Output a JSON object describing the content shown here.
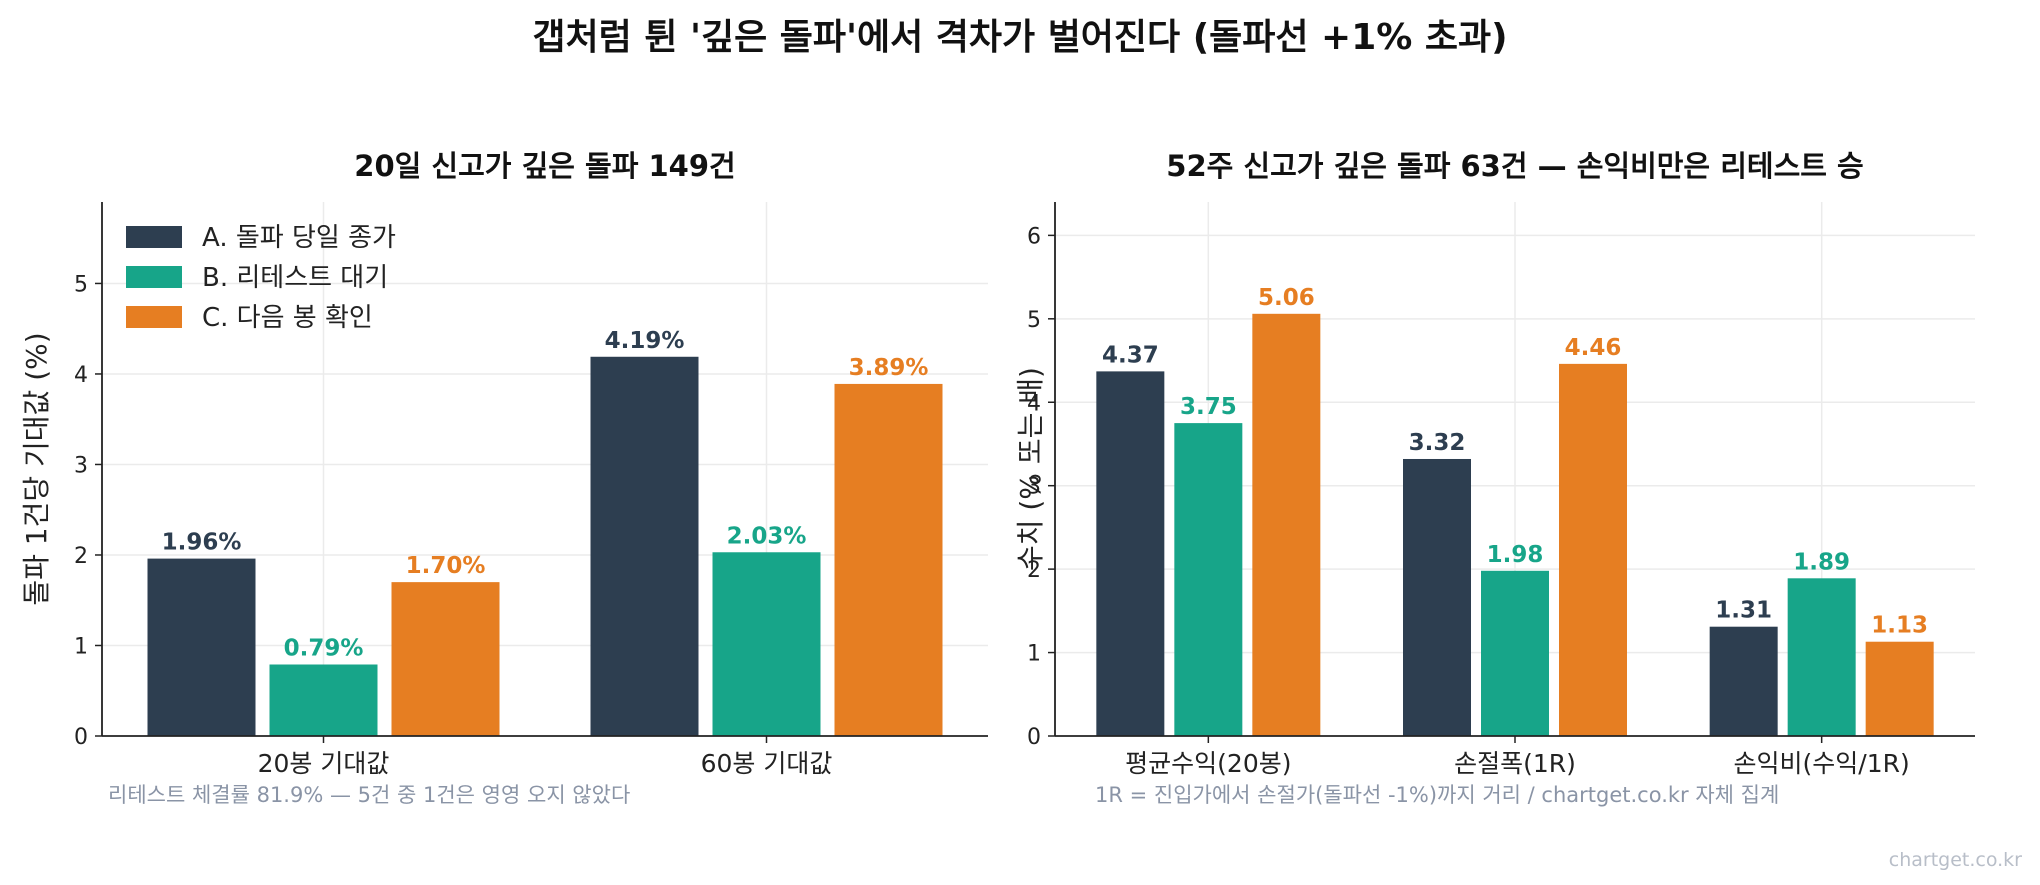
{
  "figure_title": "갭처럼 튄 '깊은 돌파'에서 격차가 벌어진다 (돌파선 +1% 초과)",
  "watermark": "chartget.co.kr",
  "colors": {
    "A": "#2d3e50",
    "B": "#17a589",
    "C": "#e67e22",
    "grid": "#ebebeb",
    "axis": "#222222"
  },
  "legend": [
    "A. 돌파 당일 종가",
    "B. 리테스트 대기",
    "C. 다음 봉 확인"
  ],
  "chart_data": [
    {
      "type": "bar",
      "title": "20일 신고가 깊은 돌파 149건",
      "ylabel": "돌파 1건당 기대값 (%)",
      "ylim": [
        0,
        5.9
      ],
      "yticks": [
        0,
        1,
        2,
        3,
        4,
        5
      ],
      "categories": [
        "20봉 기대값",
        "60봉 기대값"
      ],
      "series": [
        {
          "name": "A. 돌파 당일 종가",
          "values": [
            1.96,
            4.19
          ],
          "labels": [
            "1.96%",
            "4.19%"
          ]
        },
        {
          "name": "B. 리테스트 대기",
          "values": [
            0.79,
            2.03
          ],
          "labels": [
            "0.79%",
            "2.03%"
          ]
        },
        {
          "name": "C. 다음 봉 확인",
          "values": [
            1.7,
            3.89
          ],
          "labels": [
            "1.70%",
            "3.89%"
          ]
        }
      ],
      "legend_position": "top-left",
      "grid": true,
      "note": "리테스트 체결률 81.9% — 5건 중 1건은 영영 오지 않았다"
    },
    {
      "type": "bar",
      "title": "52주 신고가 깊은 돌파 63건 — 손익비만은 리테스트 승",
      "ylabel": "수치 (% 또는 배)",
      "ylim": [
        0,
        6.4
      ],
      "yticks": [
        0,
        1,
        2,
        3,
        4,
        5,
        6
      ],
      "categories": [
        "평균수익(20봉)",
        "손절폭(1R)",
        "손익비(수익/1R)"
      ],
      "series": [
        {
          "name": "A. 돌파 당일 종가",
          "values": [
            4.37,
            3.32,
            1.31
          ],
          "labels": [
            "4.37",
            "3.32",
            "1.31"
          ]
        },
        {
          "name": "B. 리테스트 대기",
          "values": [
            3.75,
            1.98,
            1.89
          ],
          "labels": [
            "3.75",
            "1.98",
            "1.89"
          ]
        },
        {
          "name": "C. 다음 봉 확인",
          "values": [
            5.06,
            4.46,
            1.13
          ],
          "labels": [
            "5.06",
            "4.46",
            "1.13"
          ]
        }
      ],
      "grid": true,
      "note": "1R = 진입가에서 손절가(돌파선 -1%)까지 거리 / chartget.co.kr 자체 집계"
    }
  ]
}
